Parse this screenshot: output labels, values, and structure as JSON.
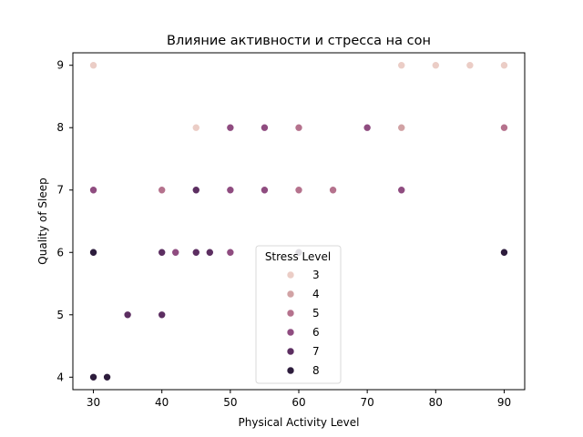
{
  "chart_data": {
    "type": "scatter",
    "title": "Влияние активности и стресса на сон",
    "xlabel": "Physical Activity Level",
    "ylabel": "Quality of Sleep",
    "xlim": [
      27,
      93
    ],
    "ylim": [
      3.8,
      9.2
    ],
    "xticks": [
      30,
      40,
      50,
      60,
      70,
      80,
      90
    ],
    "yticks": [
      4,
      5,
      6,
      7,
      8,
      9
    ],
    "grid": false,
    "legend": {
      "title": "Stress Level",
      "placement": "lower-center",
      "entries": [
        {
          "label": "3",
          "color": "#ebcdc6"
        },
        {
          "label": "4",
          "color": "#d1a2a4"
        },
        {
          "label": "5",
          "color": "#b5728d"
        },
        {
          "label": "6",
          "color": "#8f4c80"
        },
        {
          "label": "7",
          "color": "#5c2e61"
        },
        {
          "label": "8",
          "color": "#2d1c3c"
        }
      ]
    },
    "points": [
      {
        "x": 30,
        "y": 9,
        "stress": 3
      },
      {
        "x": 75,
        "y": 9,
        "stress": 3
      },
      {
        "x": 80,
        "y": 9,
        "stress": 3
      },
      {
        "x": 85,
        "y": 9,
        "stress": 3
      },
      {
        "x": 90,
        "y": 9,
        "stress": 3
      },
      {
        "x": 45,
        "y": 8,
        "stress": 3
      },
      {
        "x": 50,
        "y": 8,
        "stress": 6
      },
      {
        "x": 55,
        "y": 8,
        "stress": 6
      },
      {
        "x": 60,
        "y": 8,
        "stress": 5
      },
      {
        "x": 70,
        "y": 8,
        "stress": 6
      },
      {
        "x": 75,
        "y": 8,
        "stress": 4
      },
      {
        "x": 90,
        "y": 8,
        "stress": 5
      },
      {
        "x": 30,
        "y": 7,
        "stress": 6
      },
      {
        "x": 40,
        "y": 7,
        "stress": 5
      },
      {
        "x": 45,
        "y": 7,
        "stress": 7
      },
      {
        "x": 50,
        "y": 7,
        "stress": 6
      },
      {
        "x": 55,
        "y": 7,
        "stress": 6
      },
      {
        "x": 60,
        "y": 7,
        "stress": 5
      },
      {
        "x": 65,
        "y": 7,
        "stress": 5
      },
      {
        "x": 75,
        "y": 7,
        "stress": 6
      },
      {
        "x": 30,
        "y": 6,
        "stress": 8
      },
      {
        "x": 40,
        "y": 6,
        "stress": 7
      },
      {
        "x": 42,
        "y": 6,
        "stress": 6
      },
      {
        "x": 45,
        "y": 6,
        "stress": 7
      },
      {
        "x": 47,
        "y": 6,
        "stress": 7
      },
      {
        "x": 50,
        "y": 6,
        "stress": 6
      },
      {
        "x": 60,
        "y": 6,
        "stress": 8
      },
      {
        "x": 90,
        "y": 6,
        "stress": 8
      },
      {
        "x": 35,
        "y": 5,
        "stress": 7
      },
      {
        "x": 40,
        "y": 5,
        "stress": 7
      },
      {
        "x": 30,
        "y": 4,
        "stress": 8
      },
      {
        "x": 32,
        "y": 4,
        "stress": 8
      }
    ]
  }
}
